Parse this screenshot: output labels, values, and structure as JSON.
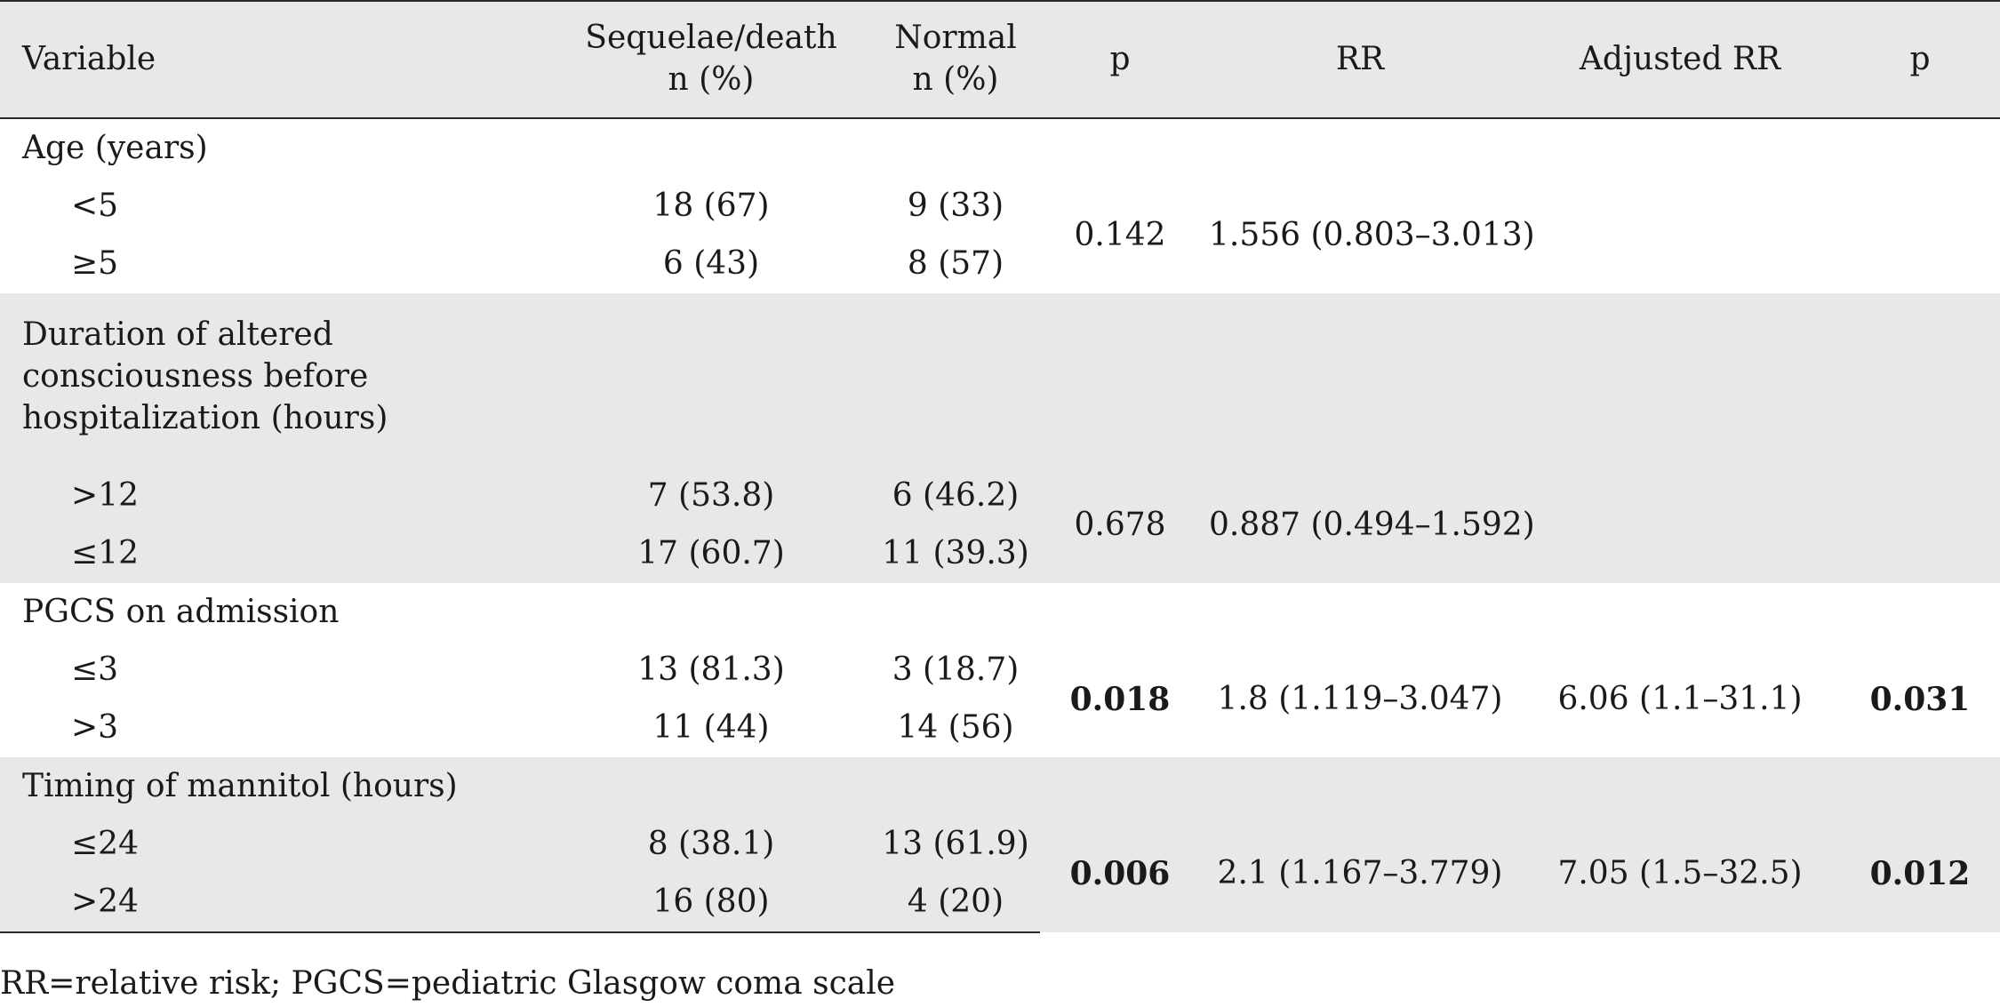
{
  "header": {
    "variable": "Variable",
    "sequelae_line1": "Sequelae/death",
    "sequelae_line2": "n (%)",
    "normal_line1": "Normal",
    "normal_line2": "n (%)",
    "p": "p",
    "rr": "RR",
    "adjusted_rr": "Adjusted RR",
    "p2": "p"
  },
  "groups": [
    {
      "label": "Age (years)",
      "rows": [
        {
          "label": "<5",
          "sequelae": "18 (67)",
          "normal": "9 (33)"
        },
        {
          "label": "≥5",
          "sequelae": "6 (43)",
          "normal": "8 (57)"
        }
      ],
      "p": "0.142",
      "rr": "1.556 (0.803–3.013)",
      "adjusted_rr": "",
      "p2": ""
    },
    {
      "label": "Duration of altered consciousness before hospitalization (hours)",
      "rows": [
        {
          "label": ">12",
          "sequelae": "7 (53.8)",
          "normal": "6 (46.2)"
        },
        {
          "label": "≤12",
          "sequelae": "17 (60.7)",
          "normal": "11 (39.3)"
        }
      ],
      "p": "0.678",
      "rr": "0.887 (0.494–1.592)",
      "adjusted_rr": "",
      "p2": ""
    },
    {
      "label": "PGCS on admission",
      "rows": [
        {
          "label": "≤3",
          "sequelae": "13 (81.3)",
          "normal": "3 (18.7)"
        },
        {
          "label": ">3",
          "sequelae": "11 (44)",
          "normal": "14 (56)"
        }
      ],
      "p": "0.018",
      "rr": "1.8 (1.119–3.047)",
      "adjusted_rr": "6.06 (1.1–31.1)",
      "p2": "0.031"
    },
    {
      "label": "Timing of mannitol (hours)",
      "rows": [
        {
          "label": "≤24",
          "sequelae": "8 (38.1)",
          "normal": "13 (61.9)"
        },
        {
          "label": ">24",
          "sequelae": "16 (80)",
          "normal": "4 (20)"
        }
      ],
      "p": "0.006",
      "rr": "2.1 (1.167–3.779)",
      "adjusted_rr": "7.05 (1.5–32.5)",
      "p2": "0.012"
    }
  ],
  "footnote": "RR=relative risk; PGCS=pediatric Glasgow coma scale"
}
